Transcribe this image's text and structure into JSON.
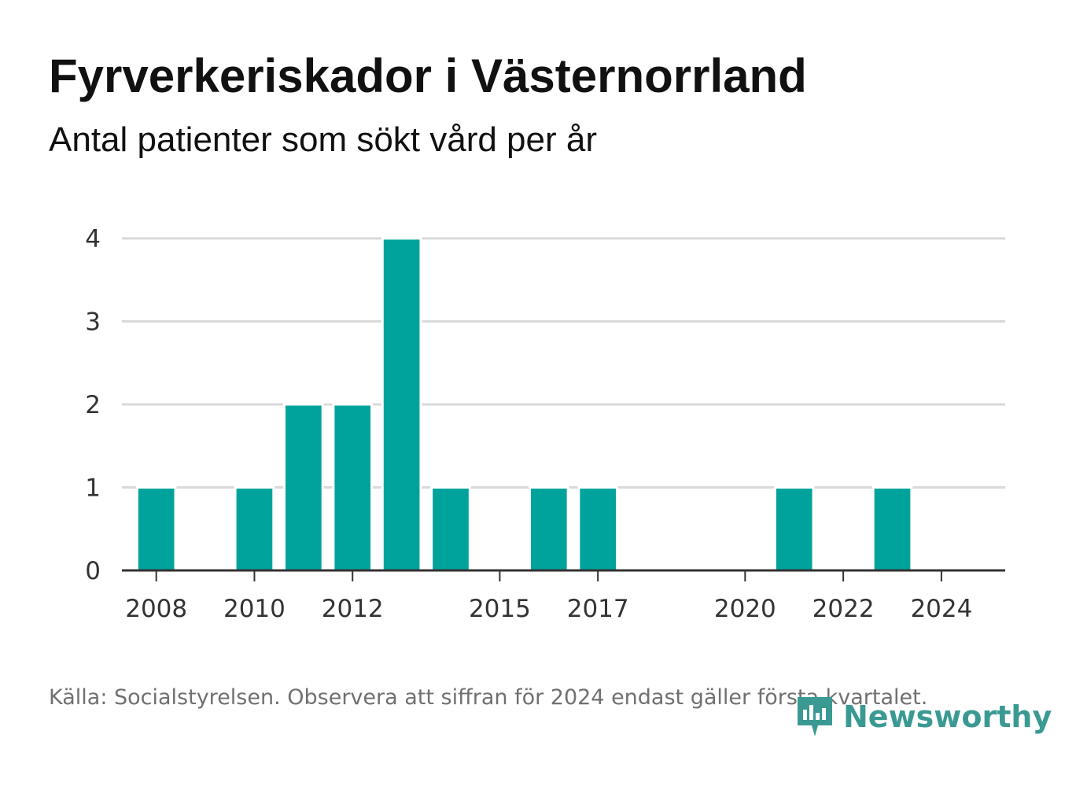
{
  "title": "Fyrverkeriskador i Västernorrland",
  "subtitle": "Antal patienter som sökt vård per år",
  "source_note": "Källa: Socialstyrelsen. Observera att siffran för 2024 endast gäller första kvartalet.",
  "brand": {
    "name": "Newsworthy",
    "icon": "newsworthy-logo-icon",
    "color": "#3a9a93"
  },
  "colors": {
    "bar": "#00a39b",
    "grid": "#d9d9d9",
    "axis": "#333333"
  },
  "chart_data": {
    "type": "bar",
    "title": "Fyrverkeriskador i Västernorrland",
    "subtitle": "Antal patienter som sökt vård per år",
    "x": [
      2008,
      2009,
      2010,
      2011,
      2012,
      2013,
      2014,
      2015,
      2016,
      2017,
      2018,
      2019,
      2020,
      2021,
      2022,
      2023,
      2024
    ],
    "values": [
      1,
      0,
      1,
      2,
      2,
      4,
      1,
      0,
      1,
      1,
      0,
      0,
      0,
      1,
      0,
      1,
      0
    ],
    "x_tick_labels": [
      "2008",
      "2010",
      "2012",
      "2015",
      "2017",
      "2020",
      "2022",
      "2024"
    ],
    "y_ticks": [
      0,
      1,
      2,
      3,
      4
    ],
    "ylim": [
      0,
      4
    ],
    "xlim": [
      2007.3,
      2025.3
    ],
    "grid": true,
    "legend": "none"
  }
}
